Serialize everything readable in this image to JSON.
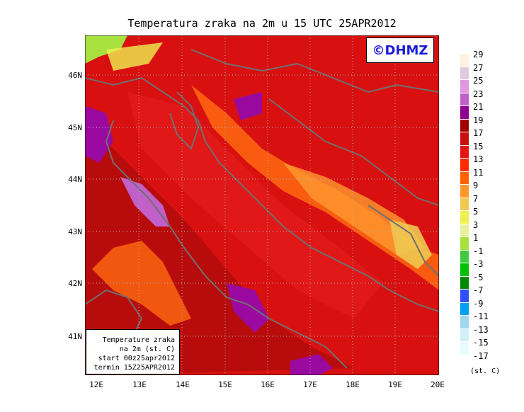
{
  "title": "Temperatura zraka na 2m u 15 UTC 25APR2012",
  "logo_text": "©DHMZ",
  "info": {
    "line1": "Temperature zraka",
    "line2": "na 2m (st. C)",
    "line3": "start 00z25apr2012",
    "line4": "termin 15Z25APR2012"
  },
  "latitudes": [
    "46N",
    "45N",
    "44N",
    "43N",
    "42N",
    "41N"
  ],
  "longitudes": [
    "12E",
    "13E",
    "14E",
    "15E",
    "16E",
    "17E",
    "18E",
    "19E",
    "20E"
  ],
  "legend": {
    "labels": [
      "29",
      "27",
      "25",
      "23",
      "21",
      "19",
      "17",
      "15",
      "13",
      "11",
      "9",
      "7",
      "5",
      "3",
      "1",
      "-1",
      "-3",
      "-5",
      "-7",
      "-9",
      "-11",
      "-13",
      "-15",
      "-17"
    ],
    "colors": [
      "#fff0e0",
      "#e0c8e0",
      "#e098e0",
      "#c060c8",
      "#900090",
      "#a00000",
      "#c81010",
      "#e61414",
      "#ff2a00",
      "#ff6400",
      "#ff9628",
      "#f0c850",
      "#f0f050",
      "#e8f0a0",
      "#a8e040",
      "#40c840",
      "#00c000",
      "#008800",
      "#3050ff",
      "#00a0f0",
      "#a0d8f0",
      "#d0f0f8",
      "#e8fcfc"
    ],
    "units": "(st. C)"
  },
  "colors": {
    "background": "#d81010",
    "coastline": "#707070"
  }
}
